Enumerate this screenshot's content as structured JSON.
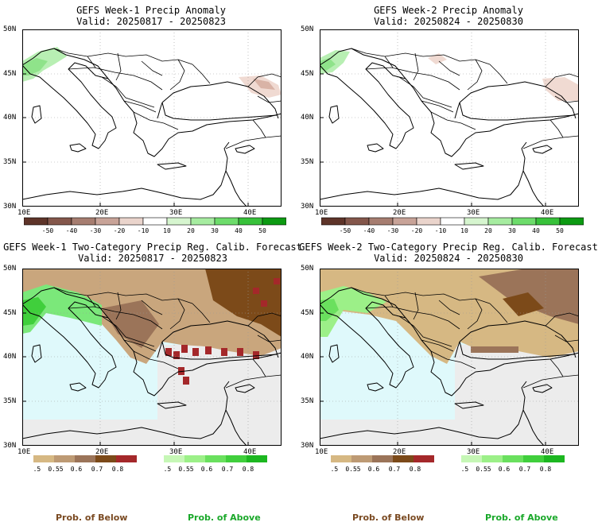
{
  "panels": [
    {
      "title": "GEFS Week-1 Precip Anomaly",
      "valid": "Valid: 20250817 - 20250823"
    },
    {
      "title": "GEFS Week-2 Precip Anomaly",
      "valid": "Valid: 20250824 - 20250830"
    },
    {
      "title": "GEFS Week-1 Two-Category Precip Reg. Calib. Forecast",
      "valid": "Valid: 20250817 - 20250823"
    },
    {
      "title": "GEFS Week-2 Two-Category Precip Reg. Calib. Forecast",
      "valid": "Valid: 20250824 - 20250830"
    }
  ],
  "axes": {
    "lat_labels": [
      "50N",
      "45N",
      "40N",
      "35N",
      "30N"
    ],
    "lon_labels": [
      "10E",
      "20E",
      "30E",
      "40E"
    ]
  },
  "anomaly_scale": {
    "labels": [
      "-50",
      "-40",
      "-30",
      "-20",
      "-10",
      "10",
      "20",
      "30",
      "40",
      "50"
    ],
    "colors": [
      "#5e3429",
      "#84574b",
      "#a67d70",
      "#c8a398",
      "#ead4cc",
      "#ffffff",
      "#d6f5cf",
      "#a6eca0",
      "#6ddc6b",
      "#37c13a",
      "#0c9a12"
    ]
  },
  "prob_scale": {
    "labels": [
      "0.5",
      "0.55",
      "0.6",
      "0.7",
      "0.8"
    ],
    "below_colors": [
      "#d6b883",
      "#bd9a74",
      "#9b7459",
      "#7c4a19",
      "#a4282a"
    ],
    "above_colors": [
      "#c6f7b6",
      "#9cf088",
      "#6ae05e",
      "#40cf3c",
      "#1cb720"
    ]
  },
  "legend": {
    "below": "Prob. of Below",
    "above": "Prob. of Above"
  },
  "colors": {
    "sea_prob": "#dff9fb",
    "no_signal": "#ececec",
    "below_mid": "#c9a67d",
    "above_mid": "#7be87a",
    "wet_anom": "#b8efb3",
    "dry_anom": "#f0dad2"
  }
}
